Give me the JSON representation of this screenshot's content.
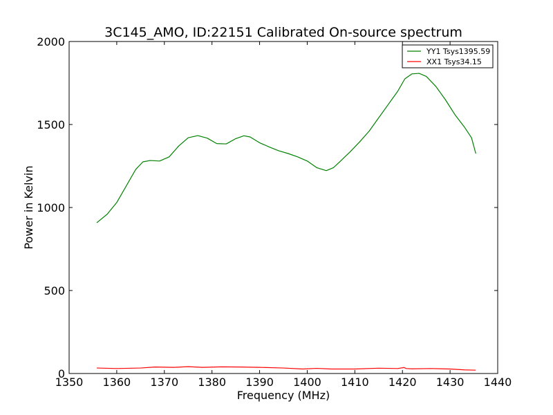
{
  "chart_data": {
    "type": "line",
    "title": "3C145_AMO, ID:22151 Calibrated On-source spectrum",
    "xlabel": "Frequency (MHz)",
    "ylabel": "Power in Kelvin",
    "xlim": [
      1350,
      1440
    ],
    "ylim": [
      0,
      2000
    ],
    "x_ticks": [
      "1350",
      "1360",
      "1370",
      "1380",
      "1390",
      "1400",
      "1410",
      "1420",
      "1430",
      "1440"
    ],
    "y_ticks": [
      "0",
      "500",
      "1000",
      "1500",
      "2000"
    ],
    "x_tick_values": [
      1350,
      1360,
      1370,
      1380,
      1390,
      1400,
      1410,
      1420,
      1430,
      1440
    ],
    "y_tick_values": [
      0,
      500,
      1000,
      1500,
      2000
    ],
    "grid": false,
    "legend_position": "top-right",
    "series": [
      {
        "name": "YY1 Tsys1395.59",
        "color": "#008000",
        "x": [
          1355.8,
          1358,
          1360,
          1362,
          1364,
          1365.5,
          1367,
          1369,
          1371,
          1373,
          1375,
          1377,
          1379,
          1381,
          1383,
          1385,
          1386.7,
          1388,
          1390,
          1392,
          1394,
          1396,
          1398,
          1400,
          1402,
          1404,
          1405.5,
          1407,
          1409,
          1411,
          1413,
          1415,
          1417,
          1419,
          1420.5,
          1422,
          1423.5,
          1425,
          1427,
          1429,
          1431,
          1433,
          1434.5,
          1435.4
        ],
        "y": [
          908,
          960,
          1030,
          1130,
          1230,
          1275,
          1283,
          1280,
          1305,
          1370,
          1420,
          1433,
          1418,
          1385,
          1383,
          1415,
          1432,
          1425,
          1390,
          1365,
          1342,
          1325,
          1305,
          1280,
          1240,
          1222,
          1240,
          1280,
          1335,
          1395,
          1460,
          1540,
          1620,
          1700,
          1775,
          1805,
          1808,
          1790,
          1730,
          1650,
          1560,
          1485,
          1420,
          1325
        ]
      },
      {
        "name": "XX1 Tsys34.15",
        "color": "#ff0000",
        "x": [
          1355.8,
          1360,
          1365,
          1368,
          1372,
          1375,
          1378,
          1382,
          1386,
          1390,
          1395,
          1399,
          1402,
          1405,
          1410,
          1415,
          1419,
          1420.3,
          1420.8,
          1422,
          1426,
          1430,
          1433,
          1435.4
        ],
        "y": [
          33,
          30,
          33,
          39,
          37,
          41,
          37,
          40,
          39,
          37,
          33,
          27,
          31,
          27,
          27,
          32,
          30,
          36,
          30,
          28,
          30,
          27,
          22,
          20
        ]
      }
    ]
  }
}
